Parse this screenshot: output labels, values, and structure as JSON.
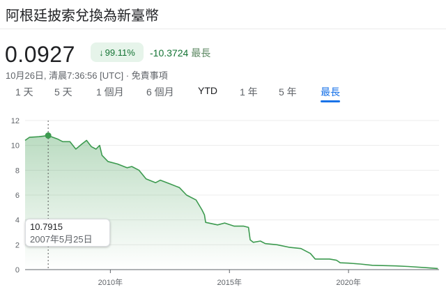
{
  "header": {
    "title": "阿根廷披索兌換為新臺幣"
  },
  "quote": {
    "price": "0.0927",
    "percent_change": "99.11%",
    "direction": "down",
    "abs_change": "-10.3724",
    "period": "最長",
    "timestamp": "10月26日, 清晨7:36:56 [UTC]",
    "separator": "·",
    "disclaimer": "免責事項"
  },
  "tabs": [
    {
      "label": "1 天"
    },
    {
      "label": "5 天"
    },
    {
      "label": "1 個月"
    },
    {
      "label": "6 個月"
    },
    {
      "label": "YTD"
    },
    {
      "label": "1 年"
    },
    {
      "label": "5 年"
    },
    {
      "label": "最長",
      "active": true
    }
  ],
  "tooltip": {
    "value": "10.7915",
    "date": "2007年5月25日"
  },
  "colors": {
    "line": "#3c9a4f",
    "up_badge_bg": "#e6f4ea",
    "accent": "#1a73e8",
    "change": "#137333"
  },
  "chart_data": {
    "type": "area",
    "title": "",
    "xlabel": "",
    "ylabel": "",
    "xlim": [
      2006.42,
      2023.8
    ],
    "ylim": [
      0,
      12
    ],
    "yticks": [
      0,
      2,
      4,
      6,
      8,
      10,
      12
    ],
    "xticks": [
      {
        "value": 2010,
        "label": "2010年"
      },
      {
        "value": 2015,
        "label": "2015年"
      },
      {
        "value": 2020,
        "label": "2020年"
      }
    ],
    "grid": true,
    "highlight": {
      "x": 2007.39,
      "y": 10.7915
    },
    "points": [
      [
        2006.42,
        10.4
      ],
      [
        2006.6,
        10.65
      ],
      [
        2007.0,
        10.7
      ],
      [
        2007.39,
        10.79
      ],
      [
        2007.8,
        10.5
      ],
      [
        2008.0,
        10.3
      ],
      [
        2008.3,
        10.3
      ],
      [
        2008.55,
        9.7
      ],
      [
        2008.8,
        10.1
      ],
      [
        2009.0,
        10.4
      ],
      [
        2009.2,
        9.9
      ],
      [
        2009.4,
        9.7
      ],
      [
        2009.55,
        10.0
      ],
      [
        2009.65,
        9.2
      ],
      [
        2009.9,
        8.7
      ],
      [
        2010.3,
        8.5
      ],
      [
        2010.7,
        8.2
      ],
      [
        2010.9,
        8.3
      ],
      [
        2011.2,
        8.0
      ],
      [
        2011.5,
        7.3
      ],
      [
        2011.9,
        7.0
      ],
      [
        2012.1,
        7.2
      ],
      [
        2012.5,
        6.9
      ],
      [
        2012.9,
        6.6
      ],
      [
        2013.2,
        6.0
      ],
      [
        2013.6,
        5.6
      ],
      [
        2013.85,
        4.8
      ],
      [
        2013.95,
        4.4
      ],
      [
        2014.0,
        3.8
      ],
      [
        2014.5,
        3.6
      ],
      [
        2014.8,
        3.75
      ],
      [
        2015.2,
        3.5
      ],
      [
        2015.6,
        3.5
      ],
      [
        2015.8,
        3.4
      ],
      [
        2015.87,
        2.4
      ],
      [
        2016.0,
        2.2
      ],
      [
        2016.3,
        2.3
      ],
      [
        2016.5,
        2.1
      ],
      [
        2017.0,
        2.0
      ],
      [
        2017.5,
        1.8
      ],
      [
        2018.0,
        1.7
      ],
      [
        2018.4,
        1.3
      ],
      [
        2018.6,
        0.85
      ],
      [
        2019.2,
        0.85
      ],
      [
        2019.5,
        0.75
      ],
      [
        2019.65,
        0.55
      ],
      [
        2020.0,
        0.52
      ],
      [
        2020.5,
        0.45
      ],
      [
        2021.0,
        0.35
      ],
      [
        2022.0,
        0.3
      ],
      [
        2022.5,
        0.25
      ],
      [
        2023.3,
        0.15
      ],
      [
        2023.75,
        0.09
      ]
    ]
  }
}
